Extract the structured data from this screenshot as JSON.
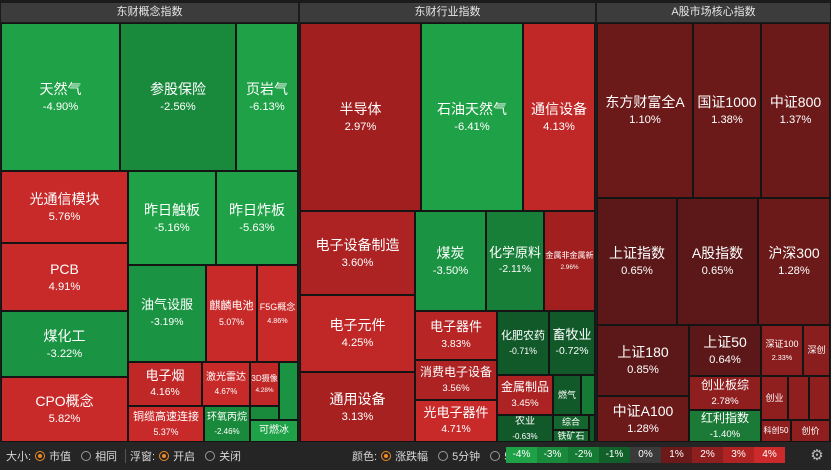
{
  "panels": [
    {
      "title": "东财概念指数"
    },
    {
      "title": "东财行业指数"
    },
    {
      "title": "A股市场核心指数"
    }
  ],
  "tiles": [
    {
      "name": "天然气",
      "pct": "-4.90%",
      "color": "#1fa247"
    },
    {
      "name": "参股保险",
      "pct": "-2.56%",
      "color": "#198a3c"
    },
    {
      "name": "页岩气",
      "pct": "-6.13%",
      "color": "#1fa247"
    },
    {
      "name": "光通信模块",
      "pct": "5.76%",
      "color": "#c82a2a"
    },
    {
      "name": "昨日触板",
      "pct": "-5.16%",
      "color": "#1fa247"
    },
    {
      "name": "昨日炸板",
      "pct": "-5.63%",
      "color": "#1fa247"
    },
    {
      "name": "PCB",
      "pct": "4.91%",
      "color": "#c82a2a"
    },
    {
      "name": "煤化工",
      "pct": "-3.22%",
      "color": "#1a9442"
    },
    {
      "name": "油气设服",
      "pct": "-3.19%",
      "color": "#1a9442"
    },
    {
      "name": "麒麟电池",
      "pct": "5.07%",
      "color": "#c82a2a"
    },
    {
      "name": "F5G概念",
      "pct": "4.86%",
      "color": "#c82a2a"
    },
    {
      "name": "CPO概念",
      "pct": "5.82%",
      "color": "#c82a2a"
    },
    {
      "name": "电子烟",
      "pct": "4.16%",
      "color": "#c02828"
    },
    {
      "name": "激光雷达",
      "pct": "4.67%",
      "color": "#c82a2a"
    },
    {
      "name": "3D摄像",
      "pct": "4.28%",
      "color": "#c02828"
    },
    {
      "name": "铜缆高速连接",
      "pct": "5.37%",
      "color": "#c82a2a"
    },
    {
      "name": "环氧丙烷",
      "pct": "-2.46%",
      "color": "#198a3c"
    },
    {
      "name": "可燃冰",
      "pct": "",
      "color": "#1fa247"
    },
    {
      "name": "半导体",
      "pct": "2.97%",
      "color": "#a11f1f"
    },
    {
      "name": "石油天然气",
      "pct": "-6.41%",
      "color": "#1fa247"
    },
    {
      "name": "通信设备",
      "pct": "4.13%",
      "color": "#c02828"
    },
    {
      "name": "电子设备制造",
      "pct": "3.60%",
      "color": "#ad2222"
    },
    {
      "name": "煤炭",
      "pct": "-3.50%",
      "color": "#1a9442"
    },
    {
      "name": "化学原料",
      "pct": "-2.11%",
      "color": "#187f38"
    },
    {
      "name": "金属非金属新",
      "pct": "2.96%",
      "color": "#a11f1f"
    },
    {
      "name": "电子元件",
      "pct": "4.25%",
      "color": "#c02828"
    },
    {
      "name": "电子器件",
      "pct": "3.83%",
      "color": "#b82525"
    },
    {
      "name": "化肥农药",
      "pct": "-0.71%",
      "color": "#12592a"
    },
    {
      "name": "畜牧业",
      "pct": "-0.72%",
      "color": "#12592a"
    },
    {
      "name": "消费电子设备",
      "pct": "3.56%",
      "color": "#ad2222"
    },
    {
      "name": "金属制品",
      "pct": "3.45%",
      "color": "#ad2222"
    },
    {
      "name": "燃气",
      "pct": "",
      "color": "#12592a"
    },
    {
      "name": "通用设备",
      "pct": "3.13%",
      "color": "#a82121"
    },
    {
      "name": "光电子器件",
      "pct": "4.71%",
      "color": "#c82a2a"
    },
    {
      "name": "农业",
      "pct": "-0.63%",
      "color": "#12592a"
    },
    {
      "name": "综合",
      "pct": "",
      "color": "#14652e"
    },
    {
      "name": "铁矿石",
      "pct": "",
      "color": "#14652e"
    },
    {
      "name": "东方财富全A",
      "pct": "1.10%",
      "color": "#6b1919"
    },
    {
      "name": "国证1000",
      "pct": "1.38%",
      "color": "#6b1919"
    },
    {
      "name": "中证800",
      "pct": "1.37%",
      "color": "#6b1919"
    },
    {
      "name": "上证指数",
      "pct": "0.65%",
      "color": "#5c1818"
    },
    {
      "name": "A股指数",
      "pct": "0.65%",
      "color": "#5c1818"
    },
    {
      "name": "沪深300",
      "pct": "1.28%",
      "color": "#6b1919"
    },
    {
      "name": "上证180",
      "pct": "0.85%",
      "color": "#5c1818"
    },
    {
      "name": "上证50",
      "pct": "0.64%",
      "color": "#5c1818"
    },
    {
      "name": "深证100",
      "pct": "2.33%",
      "color": "#8a1e1e"
    },
    {
      "name": "深创",
      "pct": "",
      "color": "#8a1e1e"
    },
    {
      "name": "创业板综",
      "pct": "2.78%",
      "color": "#8f1f1f"
    },
    {
      "name": "创业",
      "pct": "",
      "color": "#8f1f1f"
    },
    {
      "name": "中证A100",
      "pct": "1.28%",
      "color": "#6b1919"
    },
    {
      "name": "红利指数",
      "pct": "-1.40%",
      "color": "#1a7a36"
    },
    {
      "name": "科创50",
      "pct": "",
      "color": "#8f1f1f"
    },
    {
      "name": "创价",
      "pct": "",
      "color": "#8f1f1f"
    }
  ],
  "toolbar": {
    "size_label": "大小:",
    "size_options": [
      "市值",
      "相同"
    ],
    "float_label": "浮窗:",
    "float_options": [
      "开启",
      "关闭"
    ],
    "color_label": "颜色:",
    "color_options": [
      "涨跌幅",
      "5分钟",
      "5日"
    ]
  },
  "legend": [
    {
      "label": "-4%",
      "color": "#1fa247"
    },
    {
      "label": "-3%",
      "color": "#198a3c"
    },
    {
      "label": "-2%",
      "color": "#157a33"
    },
    {
      "label": "-1%",
      "color": "#11602a"
    },
    {
      "label": "0%",
      "color": "#3a3a3a"
    },
    {
      "label": "1%",
      "color": "#6b1919"
    },
    {
      "label": "2%",
      "color": "#8f1f1f"
    },
    {
      "label": "3%",
      "color": "#b02323"
    },
    {
      "label": "4%",
      "color": "#cc2a2a"
    }
  ]
}
